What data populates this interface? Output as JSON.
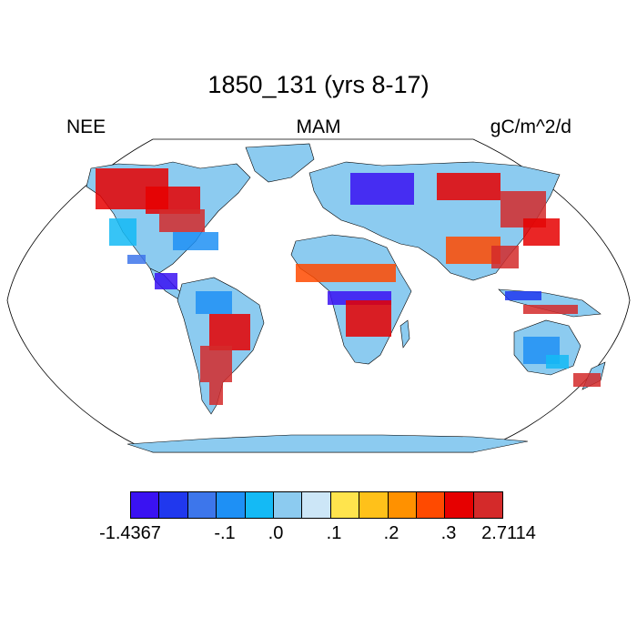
{
  "header": {
    "title": "1850_131 (yrs 8-17)",
    "left_label": "NEE",
    "center_label": "MAM",
    "right_label": "gC/m^2/d"
  },
  "colorbar": {
    "colors": [
      "#3a12f2",
      "#2038ee",
      "#3d76eb",
      "#1e90f5",
      "#14baf5",
      "#8ccbf0",
      "#cce6f7",
      "#ffe44d",
      "#ffc11a",
      "#ff9100",
      "#ff4a00",
      "#e60000",
      "#d42a2a"
    ],
    "tick_labels": [
      "-1.4367",
      "-.1",
      ".0",
      ".1",
      ".2",
      ".3",
      "2.7114"
    ]
  },
  "map": {
    "projection": "Robinson",
    "ocean_color": "#ffffff",
    "land_base_color": "#8ccbf0"
  }
}
